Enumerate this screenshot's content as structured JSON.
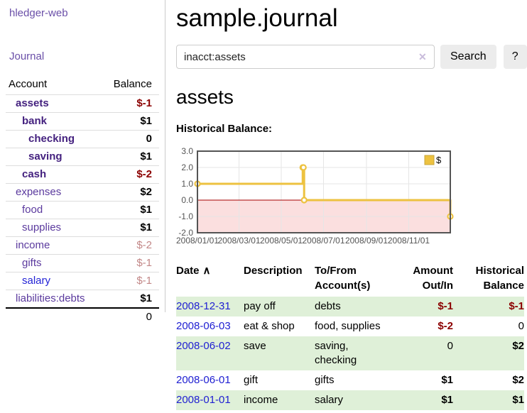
{
  "colors": {
    "link_purple": "#5b3a9e",
    "link_purple_bold": "#44217f",
    "link_blue": "#2323d6",
    "negative_red": "#8b0000",
    "muted_negative": "#c28787",
    "row_stripe_green": "#dff0d8",
    "series_yellow": "#edc240",
    "negative_region_pink": "#fbdfdf",
    "zero_line_red": "#a40000"
  },
  "sidebar": {
    "brand": "hledger-web",
    "nav": {
      "journal": "Journal"
    },
    "accounts": {
      "headers": {
        "account": "Account",
        "balance": "Balance"
      },
      "rows": [
        {
          "name": "assets",
          "depth": 1,
          "style": "bold",
          "balance": "$-1",
          "balance_style": "neg"
        },
        {
          "name": "bank",
          "depth": 2,
          "style": "bold",
          "balance": "$1",
          "balance_style": ""
        },
        {
          "name": "checking",
          "depth": 3,
          "style": "bold",
          "balance": "0",
          "balance_style": ""
        },
        {
          "name": "saving",
          "depth": 3,
          "style": "bold",
          "balance": "$1",
          "balance_style": ""
        },
        {
          "name": "cash",
          "depth": 2,
          "style": "bold",
          "balance": "$-2",
          "balance_style": "neg"
        },
        {
          "name": "expenses",
          "depth": 1,
          "style": "",
          "balance": "$2",
          "balance_style": ""
        },
        {
          "name": "food",
          "depth": 2,
          "style": "",
          "balance": "$1",
          "balance_style": ""
        },
        {
          "name": "supplies",
          "depth": 2,
          "style": "",
          "balance": "$1",
          "balance_style": ""
        },
        {
          "name": "income",
          "depth": 1,
          "style": "",
          "balance": "$-2",
          "balance_style": "soft"
        },
        {
          "name": "gifts",
          "depth": 2,
          "style": "",
          "balance": "$-1",
          "balance_style": "soft"
        },
        {
          "name": "salary",
          "depth": 2,
          "style": "blue",
          "balance": "$-1",
          "balance_style": "soft"
        },
        {
          "name": "liabilities:debts",
          "depth": 1,
          "style": "",
          "balance": "$1",
          "balance_style": ""
        }
      ],
      "total": "0"
    }
  },
  "main": {
    "title": "sample.journal",
    "search": {
      "query": "inacct:assets",
      "clear_icon": "✕",
      "button_label": "Search",
      "help_label": "?"
    },
    "account_heading": "assets",
    "chart_label": "Historical Balance:",
    "chart_data": {
      "type": "line",
      "title": "Historical Balance:",
      "step": true,
      "series": [
        {
          "name": "$",
          "points": [
            [
              "2008-01-01",
              1
            ],
            [
              "2008-06-01",
              2
            ],
            [
              "2008-06-02",
              2
            ],
            [
              "2008-06-03",
              0
            ],
            [
              "2008-12-31",
              -1
            ]
          ]
        }
      ],
      "xlim": [
        "2008-01-01",
        "2008-12-31"
      ],
      "ylim": [
        -2,
        3
      ],
      "yticks": [
        "3.0",
        "2.0",
        "1.0",
        "0.0",
        "-1.0",
        "-2.0"
      ],
      "xticks": [
        "2008/01/01",
        "2008/03/01",
        "2008/05/01",
        "2008/07/01",
        "2008/09/01",
        "2008/11/01"
      ],
      "legend": {
        "label": "$",
        "position": "top-right"
      },
      "grid": true
    },
    "transactions": {
      "columns": [
        {
          "label": "Date",
          "align": "l",
          "sorted": "asc"
        },
        {
          "label": "Description",
          "align": "l"
        },
        {
          "label": "To/From Account(s)",
          "align": "l"
        },
        {
          "label": "Amount Out/In",
          "align": "r"
        },
        {
          "label": "Historical Balance",
          "align": "r"
        }
      ],
      "sort_caret": "∧",
      "rows": [
        {
          "date": "2008-12-31",
          "description": "pay off",
          "accounts": "debts",
          "amount": "$-1",
          "amount_style": "neg",
          "balance": "$-1",
          "balance_style": "neg"
        },
        {
          "date": "2008-06-03",
          "description": "eat & shop",
          "accounts": "food, supplies",
          "amount": "$-2",
          "amount_style": "neg",
          "balance": "0",
          "balance_style": "zero"
        },
        {
          "date": "2008-06-02",
          "description": "save",
          "accounts": "saving, checking",
          "amount": "0",
          "amount_style": "zero",
          "balance": "$2",
          "balance_style": ""
        },
        {
          "date": "2008-06-01",
          "description": "gift",
          "accounts": "gifts",
          "amount": "$1",
          "amount_style": "",
          "balance": "$2",
          "balance_style": ""
        },
        {
          "date": "2008-01-01",
          "description": "income",
          "accounts": "salary",
          "amount": "$1",
          "amount_style": "",
          "balance": "$1",
          "balance_style": ""
        }
      ]
    }
  }
}
